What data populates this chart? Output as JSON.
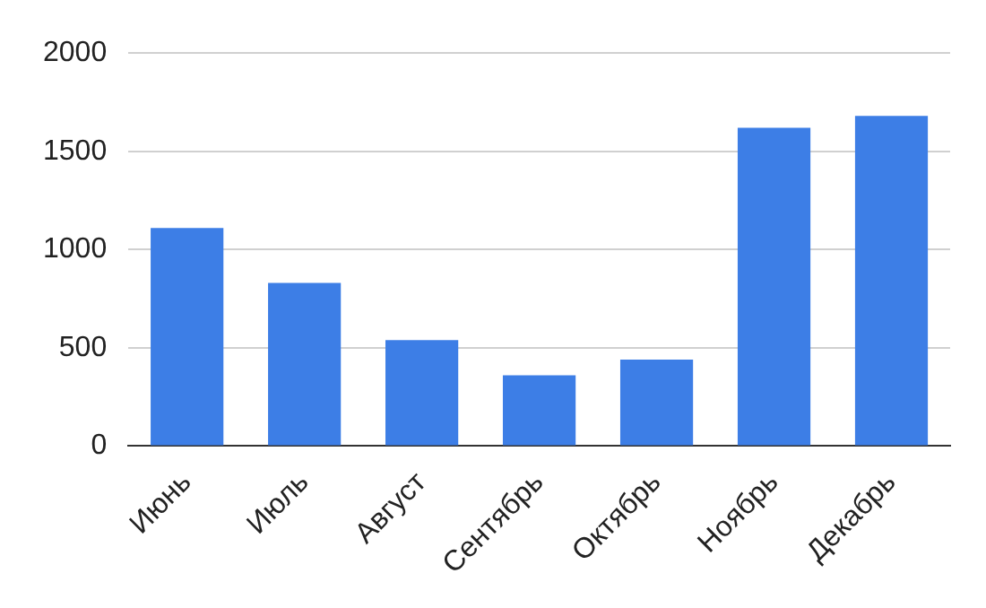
{
  "chart_data": {
    "type": "bar",
    "categories": [
      "Июнь",
      "Июль",
      "Август",
      "Сентябрь",
      "Октябрь",
      "Ноябрь",
      "Декабрь"
    ],
    "values": [
      1110,
      830,
      540,
      360,
      440,
      1620,
      1680
    ],
    "color": "#3d7ee6",
    "ylim": [
      0,
      2000
    ],
    "yticks": [
      0,
      500,
      1000,
      1500,
      2000
    ],
    "grid": "y"
  }
}
